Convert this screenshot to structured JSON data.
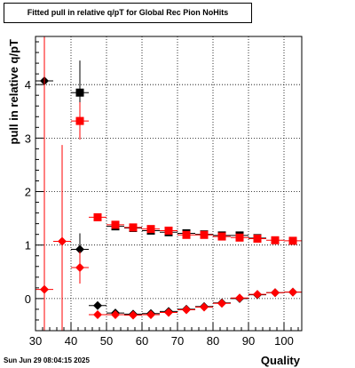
{
  "chart_data": {
    "type": "scatter",
    "title": "Fitted pull in relative q/pT for Global Rec Pion NoHits",
    "xlabel": "Quality",
    "ylabel": "pull in relative q/pT",
    "xlim": [
      30,
      105
    ],
    "ylim": [
      -0.6,
      4.9
    ],
    "x_ticks": [
      30,
      40,
      50,
      60,
      70,
      80,
      90,
      100
    ],
    "y_ticks": [
      0,
      1,
      2,
      3,
      4
    ],
    "grid": true,
    "series": [
      {
        "marker": "diamond",
        "color": "#000000",
        "points": [
          {
            "x": 32.5,
            "y": 4.07,
            "xerr": 2.5,
            "yerr": 0
          },
          {
            "x": 42.5,
            "y": 0.92,
            "xerr": 2.5,
            "yerr": 0.3
          },
          {
            "x": 47.5,
            "y": -0.13,
            "xerr": 2.5,
            "yerr": 0
          },
          {
            "x": 52.5,
            "y": -0.27,
            "xerr": 2.5,
            "yerr": 0
          },
          {
            "x": 57.5,
            "y": -0.29,
            "xerr": 2.5,
            "yerr": 0
          },
          {
            "x": 62.5,
            "y": -0.28,
            "xerr": 2.5,
            "yerr": 0
          },
          {
            "x": 67.5,
            "y": -0.24,
            "xerr": 2.5,
            "yerr": 0
          },
          {
            "x": 72.5,
            "y": -0.2,
            "xerr": 2.5,
            "yerr": 0
          },
          {
            "x": 77.5,
            "y": -0.15,
            "xerr": 2.5,
            "yerr": 0
          },
          {
            "x": 82.5,
            "y": -0.08,
            "xerr": 2.5,
            "yerr": 0
          },
          {
            "x": 87.5,
            "y": 0.0,
            "xerr": 2.5,
            "yerr": 0
          },
          {
            "x": 92.5,
            "y": 0.07,
            "xerr": 2.5,
            "yerr": 0
          },
          {
            "x": 97.5,
            "y": 0.11,
            "xerr": 2.5,
            "yerr": 0
          },
          {
            "x": 102.5,
            "y": 0.12,
            "xerr": 2.5,
            "yerr": 0
          }
        ]
      },
      {
        "marker": "square",
        "color": "#000000",
        "points": [
          {
            "x": 42.5,
            "y": 3.85,
            "xerr": 2.5,
            "yerr": 0.6
          },
          {
            "x": 52.5,
            "y": 1.35,
            "xerr": 2.5,
            "yerr": 0
          },
          {
            "x": 57.5,
            "y": 1.32,
            "xerr": 2.5,
            "yerr": 0
          },
          {
            "x": 62.5,
            "y": 1.27,
            "xerr": 2.5,
            "yerr": 0
          },
          {
            "x": 67.5,
            "y": 1.24,
            "xerr": 2.5,
            "yerr": 0
          },
          {
            "x": 72.5,
            "y": 1.22,
            "xerr": 2.5,
            "yerr": 0
          },
          {
            "x": 77.5,
            "y": 1.2,
            "xerr": 2.5,
            "yerr": 0
          },
          {
            "x": 82.5,
            "y": 1.18,
            "xerr": 2.5,
            "yerr": 0
          },
          {
            "x": 87.5,
            "y": 1.18,
            "xerr": 2.5,
            "yerr": 0
          },
          {
            "x": 92.5,
            "y": 1.13,
            "xerr": 2.5,
            "yerr": 0
          }
        ]
      },
      {
        "marker": "diamond",
        "color": "#ff0000",
        "points": [
          {
            "x": 32.5,
            "y": 0.17,
            "xerr": 2.5,
            "yerr": 5.5
          },
          {
            "x": 37.5,
            "y": 1.07,
            "xerr": 2.5,
            "yerr": 1.8
          },
          {
            "x": 42.5,
            "y": 0.58,
            "xerr": 2.5,
            "yerr": 0.3
          },
          {
            "x": 47.5,
            "y": -0.3,
            "xerr": 2.5,
            "yerr": 0
          },
          {
            "x": 52.5,
            "y": -0.3,
            "xerr": 2.5,
            "yerr": 0
          },
          {
            "x": 57.5,
            "y": -0.31,
            "xerr": 2.5,
            "yerr": 0
          },
          {
            "x": 62.5,
            "y": -0.3,
            "xerr": 2.5,
            "yerr": 0
          },
          {
            "x": 67.5,
            "y": -0.26,
            "xerr": 2.5,
            "yerr": 0
          },
          {
            "x": 72.5,
            "y": -0.21,
            "xerr": 2.5,
            "yerr": 0
          },
          {
            "x": 77.5,
            "y": -0.16,
            "xerr": 2.5,
            "yerr": 0
          },
          {
            "x": 82.5,
            "y": -0.09,
            "xerr": 2.5,
            "yerr": 0
          },
          {
            "x": 87.5,
            "y": 0.01,
            "xerr": 2.5,
            "yerr": 0
          },
          {
            "x": 92.5,
            "y": 0.08,
            "xerr": 2.5,
            "yerr": 0
          },
          {
            "x": 97.5,
            "y": 0.11,
            "xerr": 2.5,
            "yerr": 0
          },
          {
            "x": 102.5,
            "y": 0.12,
            "xerr": 2.5,
            "yerr": 0
          }
        ]
      },
      {
        "marker": "square",
        "color": "#ff0000",
        "points": [
          {
            "x": 42.5,
            "y": 3.32,
            "xerr": 2.5,
            "yerr": 0.35
          },
          {
            "x": 47.5,
            "y": 1.52,
            "xerr": 2.5,
            "yerr": 0
          },
          {
            "x": 52.5,
            "y": 1.38,
            "xerr": 2.5,
            "yerr": 0
          },
          {
            "x": 57.5,
            "y": 1.33,
            "xerr": 2.5,
            "yerr": 0
          },
          {
            "x": 62.5,
            "y": 1.3,
            "xerr": 2.5,
            "yerr": 0
          },
          {
            "x": 67.5,
            "y": 1.27,
            "xerr": 2.5,
            "yerr": 0
          },
          {
            "x": 72.5,
            "y": 1.19,
            "xerr": 2.5,
            "yerr": 0
          },
          {
            "x": 77.5,
            "y": 1.19,
            "xerr": 2.5,
            "yerr": 0
          },
          {
            "x": 82.5,
            "y": 1.16,
            "xerr": 2.5,
            "yerr": 0
          },
          {
            "x": 87.5,
            "y": 1.14,
            "xerr": 2.5,
            "yerr": 0
          },
          {
            "x": 92.5,
            "y": 1.12,
            "xerr": 2.5,
            "yerr": 0
          },
          {
            "x": 97.5,
            "y": 1.09,
            "xerr": 2.5,
            "yerr": 0
          },
          {
            "x": 102.5,
            "y": 1.08,
            "xerr": 2.5,
            "yerr": 0
          }
        ]
      }
    ]
  },
  "footer": {
    "timestamp": "Sun Jun 29 08:04:15 2025"
  }
}
